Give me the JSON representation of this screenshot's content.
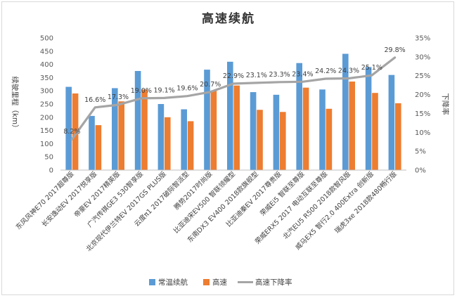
{
  "chart_data": {
    "type": "bar",
    "title": "高速续航",
    "ylabel": "续驶里程（km）",
    "y2label": "下降率",
    "ylim": [
      0,
      500
    ],
    "yticks": [
      0,
      50,
      100,
      150,
      200,
      250,
      300,
      350,
      400,
      450,
      500
    ],
    "y2lim": [
      0,
      0.35
    ],
    "y2ticks": [
      "0%",
      "5%",
      "10%",
      "15%",
      "20%",
      "25%",
      "30%",
      "35%"
    ],
    "grid": false,
    "legend_position": "bottom",
    "categories": [
      "东风风神E70 2017超尊版",
      "长安逸动EV 2017悦享版",
      "帝豪EV 2017精英版",
      "广汽传祺GE3 530智享版",
      "北京现代伊兰特EV 2017GS PLUS版",
      "云度π1 2017破际智派型",
      "腾势2017时尚版",
      "比亚迪宋EV500 智联领耀型",
      "东南DX3 EV400 2018款旗舰型",
      "比亚迪秦EV 2017尊贵版",
      "荣威Ei5 智联至尊版",
      "荣威ERX5 2017 电动互联至尊版",
      "北汽EU5 R500 2018款智风版",
      "威马EX5 智行2.0 400Extra 创新版",
      "瑞虎3xe 2018款480畅行版"
    ],
    "series": [
      {
        "name": "常温续航",
        "type": "bar",
        "color": "#5B9BD5",
        "values": [
          315,
          205,
          310,
          375,
          250,
          230,
          380,
          410,
          295,
          285,
          405,
          305,
          440,
          390,
          360
        ]
      },
      {
        "name": "高速",
        "type": "bar",
        "color": "#ED7D31",
        "values": [
          290,
          170,
          260,
          305,
          200,
          185,
          300,
          320,
          228,
          220,
          312,
          232,
          335,
          292,
          253
        ]
      },
      {
        "name": "高速下降率",
        "type": "line",
        "axis": "right",
        "color": "#A5A5A5",
        "values": [
          0.082,
          0.166,
          0.173,
          0.19,
          0.191,
          0.196,
          0.207,
          0.229,
          0.231,
          0.233,
          0.234,
          0.242,
          0.243,
          0.251,
          0.298
        ],
        "labels": [
          "8.2%",
          "16.6%",
          "17.3%",
          "19.0%",
          "19.1%",
          "19.6%",
          "20.7%",
          "22.9%",
          "23.1%",
          "23.3%",
          "23.4%",
          "24.2%",
          "24.3%",
          "25.1%",
          "29.8%"
        ]
      }
    ]
  }
}
